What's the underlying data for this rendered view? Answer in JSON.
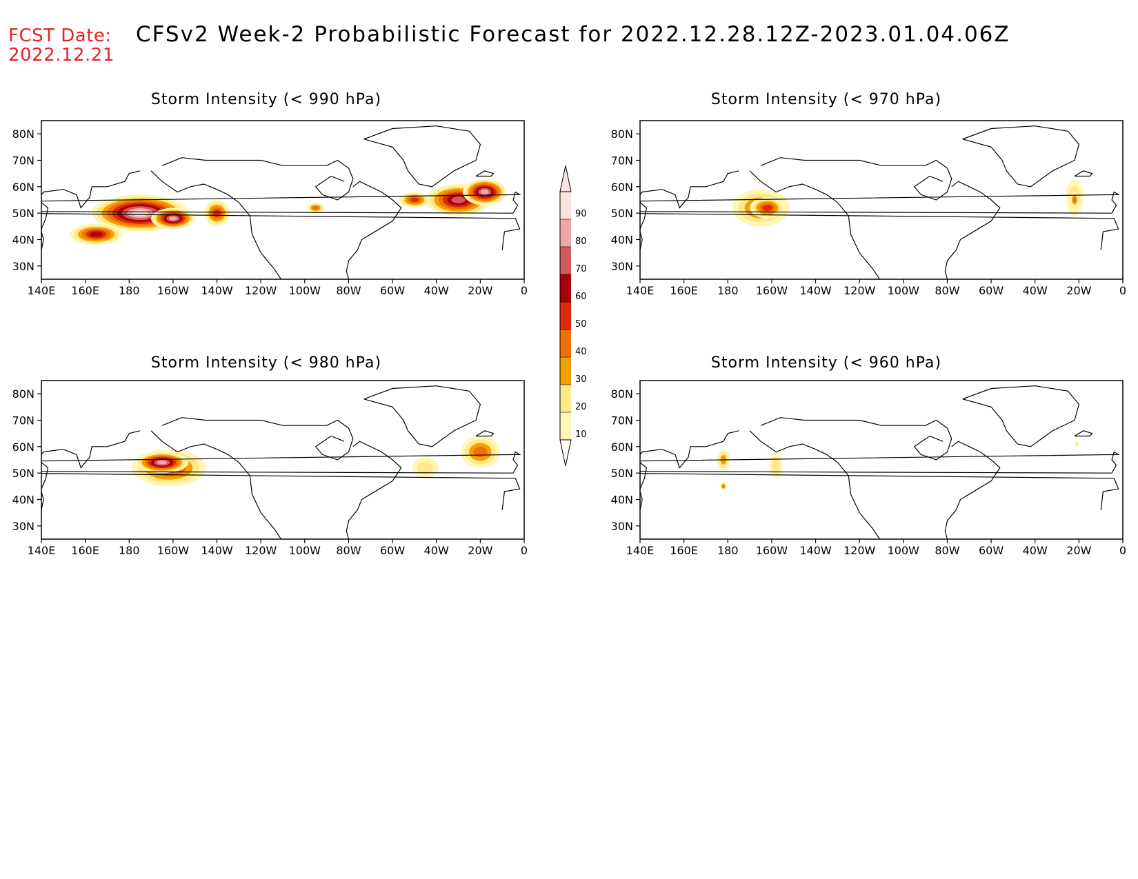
{
  "header": {
    "fcst_label": "FCST Date:",
    "fcst_date": "2022.12.21",
    "title": "CFSv2 Week-2 Probabilistic Forecast for 2022.12.28.12Z-2023.01.04.06Z"
  },
  "axes": {
    "lat_ticks": [
      "80N",
      "70N",
      "60N",
      "50N",
      "40N",
      "30N"
    ],
    "lon_ticks": [
      "140E",
      "160E",
      "180",
      "160W",
      "140W",
      "120W",
      "100W",
      "80W",
      "60W",
      "40W",
      "20W",
      "0"
    ]
  },
  "colorbar": {
    "levels": [
      "10",
      "20",
      "30",
      "40",
      "50",
      "60",
      "70",
      "80",
      "90"
    ],
    "colors": [
      "#fff6b8",
      "#fde98a",
      "#f5a000",
      "#f07000",
      "#dc2a0c",
      "#a8000a",
      "#d35a5a",
      "#eea8a8",
      "#fde0e0"
    ]
  },
  "panels": [
    {
      "id": "p990",
      "title": "Storm Intensity (< 990 hPa)",
      "blobs": [
        {
          "lon": -175,
          "lat": 50,
          "rx": 22,
          "ry": 7,
          "level": 9
        },
        {
          "lon": 165,
          "lat": 42,
          "rx": 12,
          "ry": 4,
          "level": 6
        },
        {
          "lon": -160,
          "lat": 48,
          "rx": 10,
          "ry": 4,
          "level": 8
        },
        {
          "lon": -140,
          "lat": 50,
          "rx": 6,
          "ry": 5,
          "level": 5
        },
        {
          "lon": -30,
          "lat": 55,
          "rx": 15,
          "ry": 6,
          "level": 7
        },
        {
          "lon": -18,
          "lat": 58,
          "rx": 10,
          "ry": 5,
          "level": 8
        },
        {
          "lon": -50,
          "lat": 55,
          "rx": 7,
          "ry": 3,
          "level": 5
        },
        {
          "lon": -95,
          "lat": 52,
          "rx": 4,
          "ry": 2,
          "level": 4
        }
      ]
    },
    {
      "id": "p970",
      "title": "Storm Intensity (< 970 hPa)",
      "blobs": [
        {
          "lon": -165,
          "lat": 52,
          "rx": 13,
          "ry": 7,
          "level": 4
        },
        {
          "lon": -162,
          "lat": 52,
          "rx": 8,
          "ry": 4,
          "level": 5
        },
        {
          "lon": -22,
          "lat": 56,
          "rx": 4,
          "ry": 7,
          "level": 2
        },
        {
          "lon": -22,
          "lat": 55,
          "rx": 2,
          "ry": 3,
          "level": 4
        }
      ]
    },
    {
      "id": "p980",
      "title": "Storm Intensity (< 980 hPa)",
      "blobs": [
        {
          "lon": -162,
          "lat": 52,
          "rx": 17,
          "ry": 7,
          "level": 5
        },
        {
          "lon": -165,
          "lat": 54,
          "rx": 12,
          "ry": 4,
          "level": 8
        },
        {
          "lon": -20,
          "lat": 58,
          "rx": 9,
          "ry": 6,
          "level": 4
        },
        {
          "lon": -45,
          "lat": 52,
          "rx": 6,
          "ry": 4,
          "level": 2
        }
      ]
    },
    {
      "id": "p960",
      "title": "Storm Intensity (< 960 hPa)",
      "blobs": [
        {
          "lon": 178,
          "lat": 55,
          "rx": 3,
          "ry": 4,
          "level": 3
        },
        {
          "lon": -158,
          "lat": 53,
          "rx": 3,
          "ry": 5,
          "level": 2
        },
        {
          "lon": 178,
          "lat": 45,
          "rx": 1.5,
          "ry": 1.5,
          "level": 4
        },
        {
          "lon": -21,
          "lat": 61,
          "rx": 1,
          "ry": 1,
          "level": 2
        }
      ]
    }
  ]
}
